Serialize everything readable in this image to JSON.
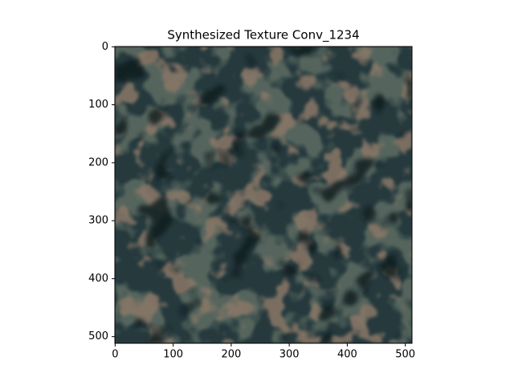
{
  "chart_data": {
    "type": "image",
    "title": "Synthesized Texture Conv_1234",
    "xlim": [
      -0.5,
      511.5
    ],
    "ylim": [
      511.5,
      -0.5
    ],
    "xticks": [
      0,
      100,
      200,
      300,
      400,
      500
    ],
    "yticks": [
      0,
      100,
      200,
      300,
      400,
      500
    ]
  }
}
